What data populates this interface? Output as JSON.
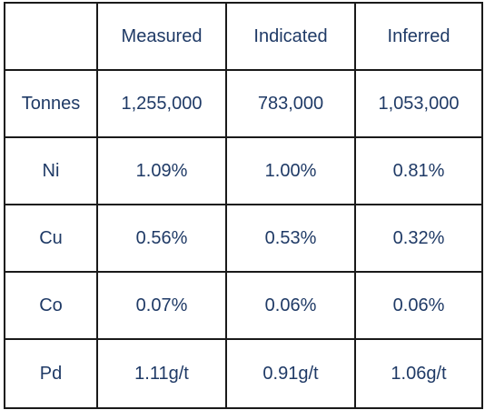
{
  "table": {
    "header": [
      "",
      "Measured",
      "Indicated",
      "Inferred"
    ],
    "rows": [
      {
        "label": "Tonnes",
        "cells": [
          "1,255,000",
          "783,000",
          "1,053,000"
        ]
      },
      {
        "label": "Ni",
        "cells": [
          "1.09%",
          "1.00%",
          "0.81%"
        ]
      },
      {
        "label": "Cu",
        "cells": [
          "0.56%",
          "0.53%",
          "0.32%"
        ]
      },
      {
        "label": "Co",
        "cells": [
          "0.07%",
          "0.06%",
          "0.06%"
        ]
      },
      {
        "label": "Pd",
        "cells": [
          "1.11g/t",
          "0.91g/t",
          "1.06g/t"
        ]
      }
    ]
  },
  "colors": {
    "text": "#1f3a66",
    "border": "#1a1a1a",
    "background": "#ffffff"
  }
}
